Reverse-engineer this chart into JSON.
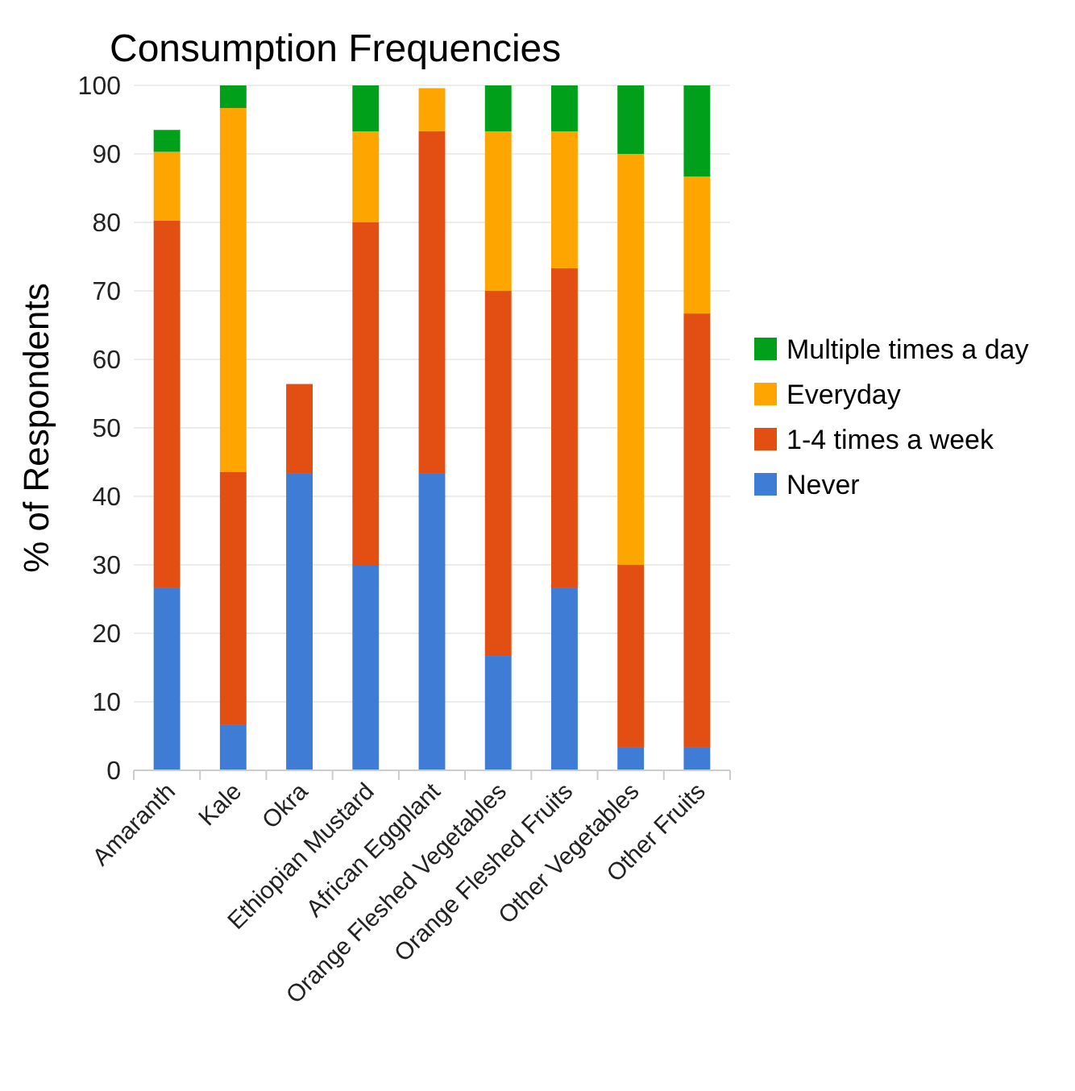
{
  "chart_data": {
    "type": "bar",
    "title": "Consumption Frequencies",
    "ylabel": "% of Respondents",
    "stacked": true,
    "categories": [
      "Amaranth",
      "Kale",
      "Okra",
      "Ethiopian Mustard",
      "African Eggplant",
      "Orange Fleshed Vegetables",
      "Orange Fleshed Fruits",
      "Other Vegetables",
      "Other Fruits"
    ],
    "series": [
      {
        "name": "Never",
        "color": "#3f7cd6",
        "values": [
          26.7,
          6.7,
          43.3,
          30,
          43.3,
          16.7,
          26.7,
          3.3,
          3.3
        ]
      },
      {
        "name": "1-4 times a week",
        "color": "#e34e12",
        "values": [
          53.6,
          36.9,
          13.1,
          50,
          50,
          53.3,
          46.6,
          26.7,
          63.4
        ]
      },
      {
        "name": "Everyday",
        "color": "#ffa500",
        "values": [
          10,
          53.1,
          0,
          13.3,
          6.3,
          23.3,
          20,
          60,
          20
        ]
      },
      {
        "name": "Multiple times a day",
        "color": "#00a01a",
        "values": [
          3.2,
          3.3,
          0,
          6.7,
          0,
          6.7,
          6.7,
          10,
          13.3
        ]
      }
    ],
    "ylim": [
      0,
      100
    ],
    "yticks": [
      0,
      10,
      20,
      30,
      40,
      50,
      60,
      70,
      80,
      90,
      100
    ],
    "grid": "y",
    "legend": "right"
  }
}
